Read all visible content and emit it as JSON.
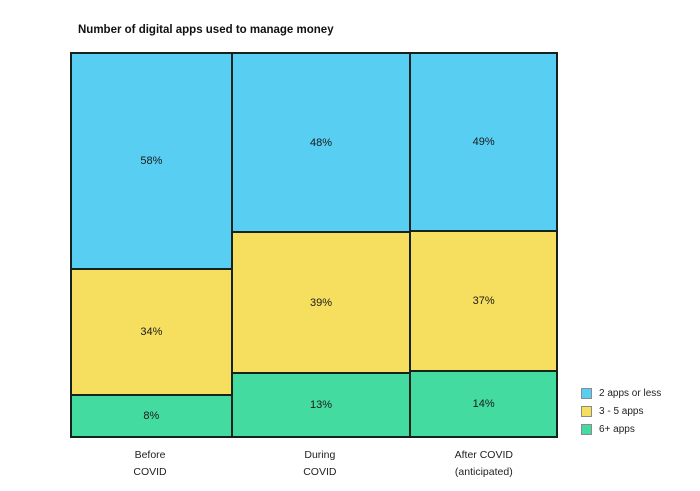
{
  "chart_data": {
    "type": "bar",
    "subtype": "stacked-100-percent-column",
    "title": "Number of digital apps used to manage money",
    "categories": [
      [
        "Before",
        "COVID"
      ],
      [
        "During",
        "COVID"
      ],
      [
        "After COVID",
        "(anticipated)"
      ]
    ],
    "series": [
      {
        "name": "2 apps or less",
        "color": "#58CEF2",
        "values": [
          58,
          48,
          49
        ]
      },
      {
        "name": "3 - 5 apps",
        "color": "#F6DF5E",
        "values": [
          34,
          39,
          37
        ]
      },
      {
        "name": "6+ apps",
        "color": "#44DBA1",
        "values": [
          8,
          13,
          14
        ]
      }
    ],
    "value_label_suffix": "%",
    "legend_position": "bottom-right",
    "grid": false,
    "layout": {
      "column_width_pct": [
        32.8,
        36.9,
        30.3
      ],
      "display_heights_pct": [
        [
          56.0,
          33.0,
          11.0
        ],
        [
          46.4,
          36.8,
          16.8
        ],
        [
          46.1,
          36.5,
          17.4
        ]
      ],
      "category_center_pct": [
        16.4,
        51.2,
        84.8
      ]
    }
  }
}
